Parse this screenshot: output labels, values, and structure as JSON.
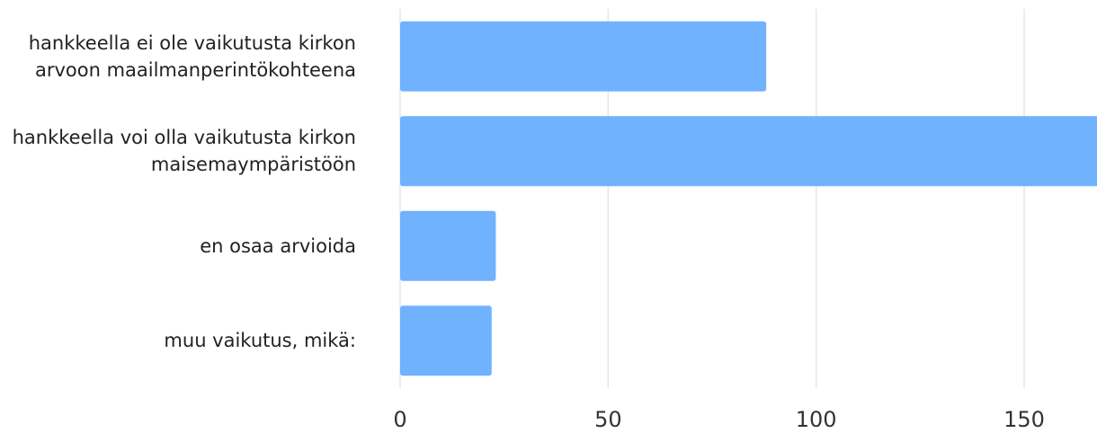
{
  "chart_data": {
    "type": "bar",
    "orientation": "horizontal",
    "categories": [
      "hankkeella ei ole vaikutusta kirkon arvoon maailmanperintökohteena",
      "hankkeella voi olla vaikutusta kirkon maisemaympäristöön",
      "en osaa arvioida",
      "muu vaikutus, mikä:"
    ],
    "values": [
      88,
      170,
      23,
      22
    ],
    "color": "#71b2ff",
    "xlim": [
      0,
      167.5
    ],
    "xticks": [
      0,
      50,
      100,
      150
    ],
    "grid": true
  }
}
